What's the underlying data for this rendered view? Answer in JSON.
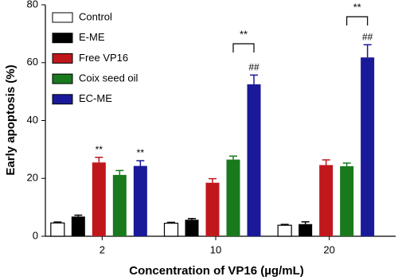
{
  "chart_data": {
    "type": "bar",
    "y_label": "Early apoptosis (%)",
    "x_label": "Concentration of VP16 (µg/mL)",
    "categories": [
      "2",
      "10",
      "20"
    ],
    "series": [
      {
        "name": "Control",
        "color": "#ffffff",
        "values": [
          4.6,
          4.5,
          3.8
        ],
        "errors": [
          0.3,
          0.3,
          0.3
        ]
      },
      {
        "name": "E-ME",
        "color": "#000000",
        "values": [
          6.8,
          5.7,
          4.2
        ],
        "errors": [
          0.5,
          0.4,
          0.8
        ]
      },
      {
        "name": "Free VP16",
        "color": "#c0171d",
        "values": [
          25.5,
          18.5,
          24.6
        ],
        "errors": [
          1.8,
          1.4,
          1.8
        ]
      },
      {
        "name": "Coix seed oil",
        "color": "#18791d",
        "values": [
          21.2,
          26.5,
          24.2
        ],
        "errors": [
          1.5,
          1.2,
          1.1
        ]
      },
      {
        "name": "EC-ME",
        "color": "#19199a",
        "values": [
          24.3,
          52.5,
          61.8
        ],
        "errors": [
          1.8,
          3.2,
          4.4
        ]
      }
    ],
    "annotations": [
      "**",
      "**",
      "##",
      "##",
      "**",
      "**"
    ],
    "ylim": [
      0,
      80
    ],
    "yticks": [
      0,
      20,
      40,
      60,
      80
    ],
    "legend": "upper-left"
  }
}
